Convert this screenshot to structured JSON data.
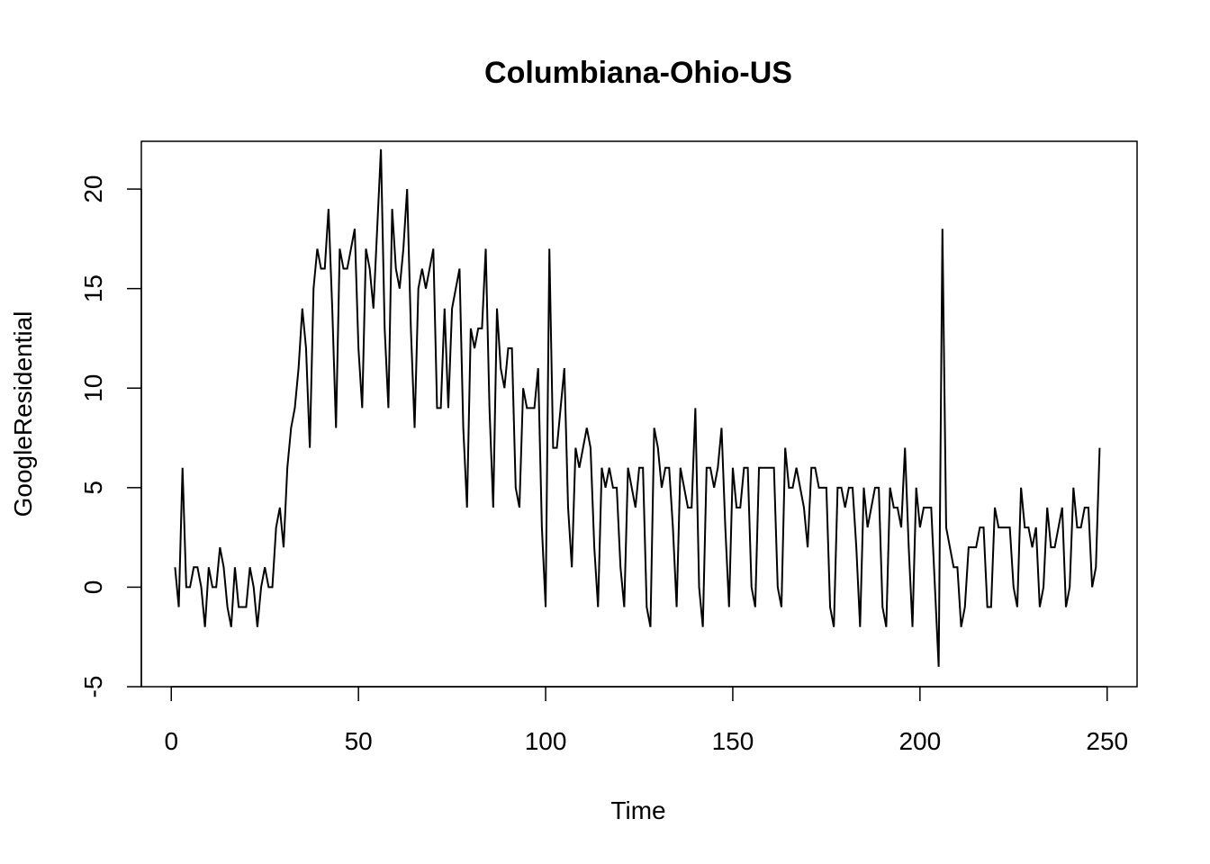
{
  "chart_data": {
    "type": "line",
    "title": "Columbiana-Ohio-US",
    "xlabel": "Time",
    "ylabel": "GoogleResidential",
    "xlim": [
      -8,
      258
    ],
    "ylim": [
      -5,
      22.4
    ],
    "x_ticks": [
      0,
      50,
      100,
      150,
      200,
      250
    ],
    "x_tick_labels": [
      "0",
      "50",
      "100",
      "150",
      "200",
      "250"
    ],
    "y_ticks": [
      -5,
      0,
      5,
      10,
      15,
      20
    ],
    "y_tick_labels": [
      "-5",
      "0",
      "5",
      "10",
      "15",
      "20"
    ],
    "grid": false,
    "legend": "none",
    "colors": {
      "line": "#000000",
      "frame": "#000000",
      "background": "#ffffff"
    },
    "series": [
      {
        "x_start": 1,
        "x_step": 1,
        "values": [
          1,
          -1,
          6,
          0,
          0,
          1,
          1,
          0,
          -2,
          1,
          0,
          0,
          2,
          1,
          -1,
          -2,
          1,
          -1,
          -1,
          -1,
          1,
          0,
          -2,
          0,
          1,
          0,
          0,
          3,
          4,
          2,
          6,
          8,
          9,
          11,
          14,
          12,
          7,
          15,
          17,
          16,
          16,
          19,
          14,
          8,
          17,
          16,
          16,
          17,
          18,
          12,
          9,
          17,
          16,
          14,
          18,
          22,
          13,
          9,
          19,
          16,
          15,
          17,
          20,
          13,
          8,
          15,
          16,
          15,
          16,
          17,
          9,
          9,
          14,
          9,
          14,
          15,
          16,
          8,
          4,
          13,
          12,
          13,
          13,
          17,
          9,
          4,
          14,
          11,
          10,
          12,
          12,
          5,
          4,
          10,
          9,
          9,
          9,
          11,
          3,
          -1,
          17,
          7,
          7,
          9,
          11,
          4,
          1,
          7,
          6,
          7,
          8,
          7,
          2,
          -1,
          6,
          5,
          6,
          5,
          5,
          1,
          -1,
          6,
          5,
          4,
          6,
          6,
          -1,
          -2,
          8,
          7,
          5,
          6,
          6,
          3,
          -1,
          6,
          5,
          4,
          4,
          9,
          0,
          -2,
          6,
          6,
          5,
          6,
          8,
          3,
          -1,
          6,
          4,
          4,
          6,
          6,
          0,
          -1,
          6,
          6,
          6,
          6,
          6,
          0,
          -1,
          7,
          5,
          5,
          6,
          5,
          4,
          2,
          6,
          6,
          5,
          5,
          5,
          -1,
          -2,
          5,
          5,
          4,
          5,
          5,
          2,
          -2,
          5,
          3,
          4,
          5,
          5,
          -1,
          -2,
          5,
          4,
          4,
          3,
          7,
          2,
          -2,
          5,
          3,
          4,
          4,
          4,
          0,
          -4,
          18,
          3,
          2,
          1,
          1,
          -2,
          -1,
          2,
          2,
          2,
          3,
          3,
          -1,
          -1,
          4,
          3,
          3,
          3,
          3,
          0,
          -1,
          5,
          3,
          3,
          2,
          3,
          -1,
          0,
          4,
          2,
          2,
          3,
          4,
          -1,
          0,
          5,
          3,
          3,
          4,
          4,
          0,
          1,
          7
        ]
      }
    ]
  }
}
